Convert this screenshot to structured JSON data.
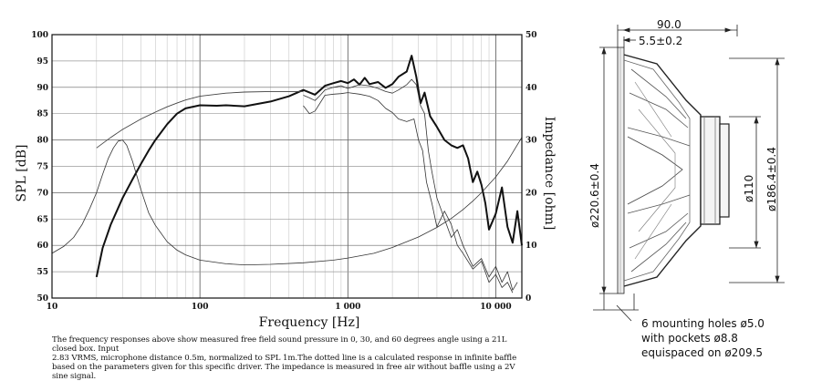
{
  "chart_data": {
    "type": "line",
    "x_scale": "log",
    "xlim": [
      10,
      15000
    ],
    "ylim": [
      50,
      100
    ],
    "y2lim": [
      0,
      50
    ],
    "xlabel": "Frequency [Hz]",
    "ylabel": "SPL [dB]",
    "y2label": "Impedance [ohm]",
    "x_tick_labels": [
      "10",
      "100",
      "1 000",
      "10 000"
    ],
    "x_tick_values": [
      10,
      100,
      1000,
      10000
    ],
    "y_ticks": [
      50,
      55,
      60,
      65,
      70,
      75,
      80,
      85,
      90,
      95,
      100
    ],
    "y2_ticks": [
      0,
      10,
      20,
      30,
      40,
      50
    ],
    "grid": true,
    "series": [
      {
        "id": "spl_0deg",
        "axis": "left",
        "style": "thick",
        "x": [
          20,
          22,
          25,
          30,
          35,
          40,
          45,
          50,
          60,
          70,
          80,
          100,
          130,
          150,
          200,
          300,
          400,
          500,
          600,
          700,
          800,
          900,
          1000,
          1100,
          1200,
          1300,
          1400,
          1600,
          1800,
          2000,
          2200,
          2500,
          2700,
          2900,
          3100,
          3300,
          3600,
          4000,
          4500,
          5000,
          5500,
          6000,
          6500,
          7000,
          7500,
          8000,
          8500,
          9000,
          10000,
          11000,
          12000,
          13000,
          14000,
          15000
        ],
        "y": [
          54,
          59.5,
          64,
          69,
          72.5,
          75.5,
          78,
          80,
          83,
          85,
          86,
          86.6,
          86.5,
          86.6,
          86.4,
          87.3,
          88.3,
          89.5,
          88.6,
          90.3,
          90.8,
          91.2,
          90.8,
          91.5,
          90.5,
          91.8,
          90.6,
          91,
          89.9,
          90.6,
          92,
          93,
          96,
          92,
          87,
          89,
          84.5,
          82.5,
          80,
          79,
          78.5,
          79,
          76.5,
          72,
          74,
          71.5,
          68,
          63,
          66,
          71,
          63.5,
          60.5,
          66.5,
          60
        ]
      },
      {
        "id": "spl_30deg",
        "axis": "left",
        "style": "thin",
        "x": [
          500,
          550,
          600,
          650,
          700,
          800,
          900,
          1000,
          1200,
          1400,
          1600,
          1800,
          2000,
          2200,
          2500,
          2700,
          2900,
          3100,
          3300,
          3500,
          3700,
          4000,
          4500,
          5000,
          5500,
          6000,
          7000,
          8000,
          9000,
          10000,
          11000,
          12000,
          13000,
          14000
        ],
        "y": [
          88.5,
          88,
          87.5,
          88.5,
          89.5,
          90,
          90.3,
          89.8,
          90.5,
          90.3,
          89.8,
          89.2,
          88.9,
          89.5,
          90.5,
          91.5,
          90.5,
          86.5,
          85,
          78,
          74,
          69,
          65,
          61.5,
          63,
          60,
          56,
          57.5,
          54,
          56,
          53,
          55,
          51.5,
          53
        ]
      },
      {
        "id": "spl_60deg",
        "axis": "left",
        "style": "thin",
        "x": [
          500,
          550,
          600,
          700,
          800,
          900,
          1000,
          1200,
          1400,
          1600,
          1800,
          2000,
          2200,
          2500,
          2800,
          3000,
          3200,
          3400,
          3700,
          4000,
          4500,
          5000,
          5500,
          6000,
          7000,
          8000,
          9000,
          10000,
          11000,
          12000,
          13000
        ],
        "y": [
          86.5,
          85,
          85.5,
          88.5,
          88.7,
          88.8,
          89,
          88.7,
          88.3,
          87.5,
          86,
          85.2,
          84,
          83.5,
          84,
          80,
          78,
          72,
          68,
          63.5,
          66.5,
          64,
          60,
          58.5,
          55.5,
          57,
          53,
          54.5,
          52,
          53,
          51
        ]
      },
      {
        "id": "spl_infinite_baffle",
        "axis": "left",
        "style": "dotted",
        "x": [
          20,
          25,
          30,
          40,
          50,
          60,
          70,
          80,
          100,
          150,
          200,
          300,
          400,
          500
        ],
        "y": [
          78.5,
          80.5,
          82,
          84,
          85.3,
          86.3,
          87,
          87.6,
          88.3,
          88.9,
          89.1,
          89.2,
          89.2,
          89.2
        ]
      },
      {
        "id": "impedance",
        "axis": "right",
        "style": "thin",
        "x": [
          10,
          12,
          14,
          16,
          18,
          20,
          22,
          24,
          26,
          28,
          30,
          32,
          35,
          40,
          45,
          50,
          60,
          70,
          80,
          100,
          150,
          200,
          300,
          500,
          800,
          1000,
          1500,
          2000,
          3000,
          4000,
          5000,
          6000,
          7000,
          8000,
          10000,
          12000,
          15000
        ],
        "y": [
          8.5,
          9.8,
          11.5,
          14,
          17,
          20,
          23.5,
          26.5,
          28.5,
          29.8,
          30,
          29,
          26,
          20.5,
          16.2,
          13.8,
          10.7,
          9.1,
          8.2,
          7.2,
          6.5,
          6.3,
          6.4,
          6.7,
          7.2,
          7.6,
          8.5,
          9.6,
          11.6,
          13.4,
          15.1,
          16.8,
          18.4,
          20,
          23,
          26,
          30.5
        ]
      }
    ]
  },
  "caption": {
    "line1": "The frequency responses above show measured free field sound pressure in 0, 30, and 60 degrees angle using a 21L closed box. Input",
    "line2": "2.83 VRMS, microphone distance 0.5m, normalized to SPL 1m.The dotted line is a calculated response in infinite baffle",
    "line3": "based on the parameters given for this specific driver. The impedance is measured in free air without baffle using a 2V",
    "line4": "sine signal."
  },
  "drawing": {
    "depth": "90.0",
    "flange": "5.5±0.2",
    "outer_diameter": "ø220.6±0.4",
    "magnet_diameter": "ø110",
    "cutout_diameter": "ø186.4±0.4",
    "mounting_note_1": "6 mounting holes ø5.0",
    "mounting_note_2": "with pockets ø8.8",
    "mounting_note_3": "equispaced on ø209.5"
  }
}
